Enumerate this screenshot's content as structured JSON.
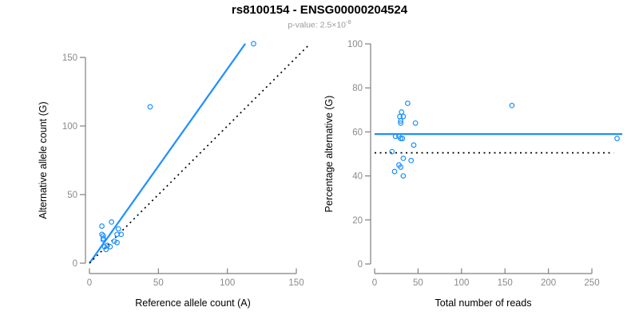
{
  "header": {
    "title": "rs8100154 - ENSG00000204524",
    "pvalue_label": "p-value: 2.5×10",
    "pvalue_exponent": "-8"
  },
  "colors": {
    "accent_blue": "#1E90FF",
    "reference_black": "#000000",
    "axis_gray": "#808080",
    "tick_label_gray": "#8a8a8a",
    "axis_title_black": "#000000"
  },
  "chart_data": [
    {
      "id": "allele-count-scatter",
      "type": "scatter",
      "title": "",
      "xlabel": "Reference allele count (A)",
      "ylabel": "Alternative allele count (G)",
      "xlim": [
        0,
        160
      ],
      "ylim": [
        0,
        163
      ],
      "xticks": [
        0,
        50,
        100,
        150
      ],
      "yticks": [
        0,
        50,
        100,
        150
      ],
      "grid": false,
      "points": [
        [
          9,
          27
        ],
        [
          16,
          30
        ],
        [
          9,
          21
        ],
        [
          10,
          20
        ],
        [
          10,
          18
        ],
        [
          10,
          17
        ],
        [
          21,
          25
        ],
        [
          20,
          21
        ],
        [
          23,
          21
        ],
        [
          18,
          16
        ],
        [
          20,
          15
        ],
        [
          13,
          13
        ],
        [
          15,
          12
        ],
        [
          11,
          12
        ],
        [
          12,
          10
        ],
        [
          44,
          114
        ],
        [
          119,
          160
        ]
      ],
      "lines": [
        {
          "name": "regression-line",
          "x1": 0,
          "y1": 0,
          "x2": 113,
          "y2": 160,
          "color": "accent_blue",
          "dashed": false,
          "width": 2.2
        },
        {
          "name": "identity-line",
          "x1": 0,
          "y1": 0,
          "x2": 160,
          "y2": 160,
          "color": "reference_black",
          "dashed": true,
          "width": 1.7
        }
      ]
    },
    {
      "id": "percentage-vs-reads-scatter",
      "type": "scatter",
      "title": "",
      "xlabel": "Total number of reads",
      "ylabel": "Percentage alternative (G)",
      "xlim": [
        0,
        285
      ],
      "ylim": [
        0,
        100
      ],
      "xticks": [
        0,
        50,
        100,
        150,
        200,
        250
      ],
      "yticks": [
        0,
        20,
        40,
        60,
        80,
        100
      ],
      "grid": false,
      "points": [
        [
          38,
          73
        ],
        [
          31,
          69
        ],
        [
          33,
          67
        ],
        [
          29,
          67
        ],
        [
          30,
          65
        ],
        [
          47,
          64
        ],
        [
          30,
          64
        ],
        [
          24,
          58
        ],
        [
          28,
          58
        ],
        [
          30,
          57
        ],
        [
          32,
          57
        ],
        [
          45,
          54
        ],
        [
          20,
          51
        ],
        [
          33,
          48
        ],
        [
          42,
          47
        ],
        [
          28,
          45
        ],
        [
          30,
          44
        ],
        [
          23,
          42
        ],
        [
          33,
          40
        ],
        [
          158,
          72
        ],
        [
          279,
          57
        ]
      ],
      "lines": [
        {
          "name": "mean-percentage-line",
          "x1": 0,
          "y1": 59,
          "x2": 285,
          "y2": 59,
          "color": "accent_blue",
          "dashed": false,
          "width": 2.2
        },
        {
          "name": "expected-percentage-line",
          "x1": 0,
          "y1": 50.5,
          "x2": 275,
          "y2": 50.5,
          "color": "reference_black",
          "dashed": true,
          "width": 1.7
        }
      ]
    }
  ]
}
